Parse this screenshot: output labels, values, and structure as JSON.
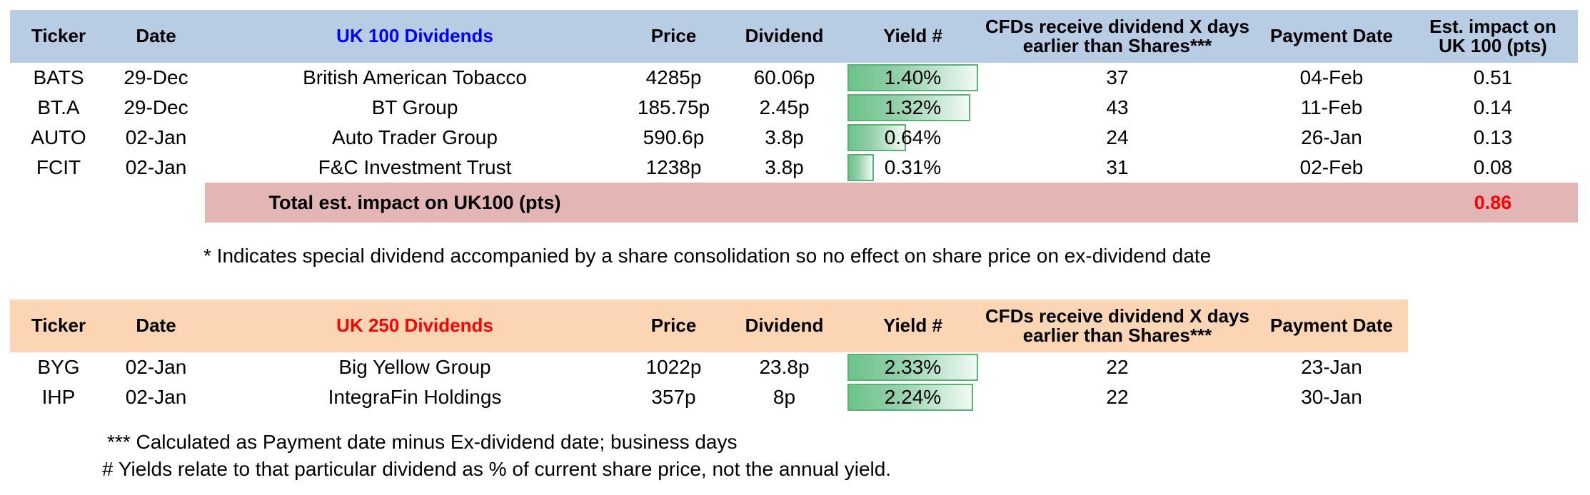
{
  "colors": {
    "header_blue_bg": "#b8cce4",
    "header_orange_bg": "#fcd5b4",
    "total_row_pink_bg": "#e3b6b5",
    "uk100_title_text": "#0000ff",
    "uk250_title_text": "#ff0000",
    "total_value_text": "#ff0000",
    "yield_bar_green": "#6dc289",
    "yield_bar_border": "#5bb078",
    "body_text": "#000000"
  },
  "table1": {
    "header": {
      "ticker": "Ticker",
      "date": "Date",
      "title": "UK 100 Dividends",
      "price": "Price",
      "dividend": "Dividend",
      "yield": "Yield #",
      "cfds_line1": "CFDs receive dividend X days",
      "cfds_line2": "earlier than Shares***",
      "payment": "Payment Date",
      "impact_line1": "Est. impact on",
      "impact_line2": "UK 100 (pts)"
    },
    "rows": [
      {
        "ticker": "BATS",
        "date": "29-Dec",
        "name": "British American Tobacco",
        "price": "4285p",
        "dividend": "60.06p",
        "yield": "1.40%",
        "yield_bar_pct": 100,
        "cfd_days": "37",
        "payment": "04-Feb",
        "impact": "0.51"
      },
      {
        "ticker": "BT.A",
        "date": "29-Dec",
        "name": "BT Group",
        "price": "185.75p",
        "dividend": "2.45p",
        "yield": "1.32%",
        "yield_bar_pct": 94,
        "cfd_days": "43",
        "payment": "11-Feb",
        "impact": "0.14"
      },
      {
        "ticker": "AUTO",
        "date": "02-Jan",
        "name": "Auto Trader Group",
        "price": "590.6p",
        "dividend": "3.8p",
        "yield": "0.64%",
        "yield_bar_pct": 46,
        "cfd_days": "24",
        "payment": "26-Jan",
        "impact": "0.13"
      },
      {
        "ticker": "FCIT",
        "date": "02-Jan",
        "name": "F&C Investment Trust",
        "price": "1238p",
        "dividend": "3.8p",
        "yield": "0.31%",
        "yield_bar_pct": 22,
        "cfd_days": "31",
        "payment": "02-Feb",
        "impact": "0.08"
      }
    ],
    "total": {
      "label": "Total est. impact on UK100 (pts)",
      "value": "0.86"
    }
  },
  "table2": {
    "header": {
      "ticker": "Ticker",
      "date": "Date",
      "title": "UK 250 Dividends",
      "price": "Price",
      "dividend": "Dividend",
      "yield": "Yield #",
      "cfds_line1": "CFDs receive dividend X days",
      "cfds_line2": "earlier than Shares***",
      "payment": "Payment Date"
    },
    "rows": [
      {
        "ticker": "BYG",
        "date": "02-Jan",
        "name": "Big Yellow Group",
        "price": "1022p",
        "dividend": "23.8p",
        "yield": "2.33%",
        "yield_bar_pct": 100,
        "cfd_days": "22",
        "payment": "23-Jan"
      },
      {
        "ticker": "IHP",
        "date": "02-Jan",
        "name": "IntegraFin Holdings",
        "price": "357p",
        "dividend": "8p",
        "yield": "2.24%",
        "yield_bar_pct": 96,
        "cfd_days": "22",
        "payment": "30-Jan"
      }
    ]
  },
  "footnotes": {
    "special_dividend": "* Indicates special dividend accompanied by a share consolidation so no effect on share price on ex-dividend date",
    "calculation": "*** Calculated as Payment date minus Ex-dividend date; business days",
    "yield_note": "# Yields relate to that particular dividend as % of current share price, not the annual yield."
  }
}
